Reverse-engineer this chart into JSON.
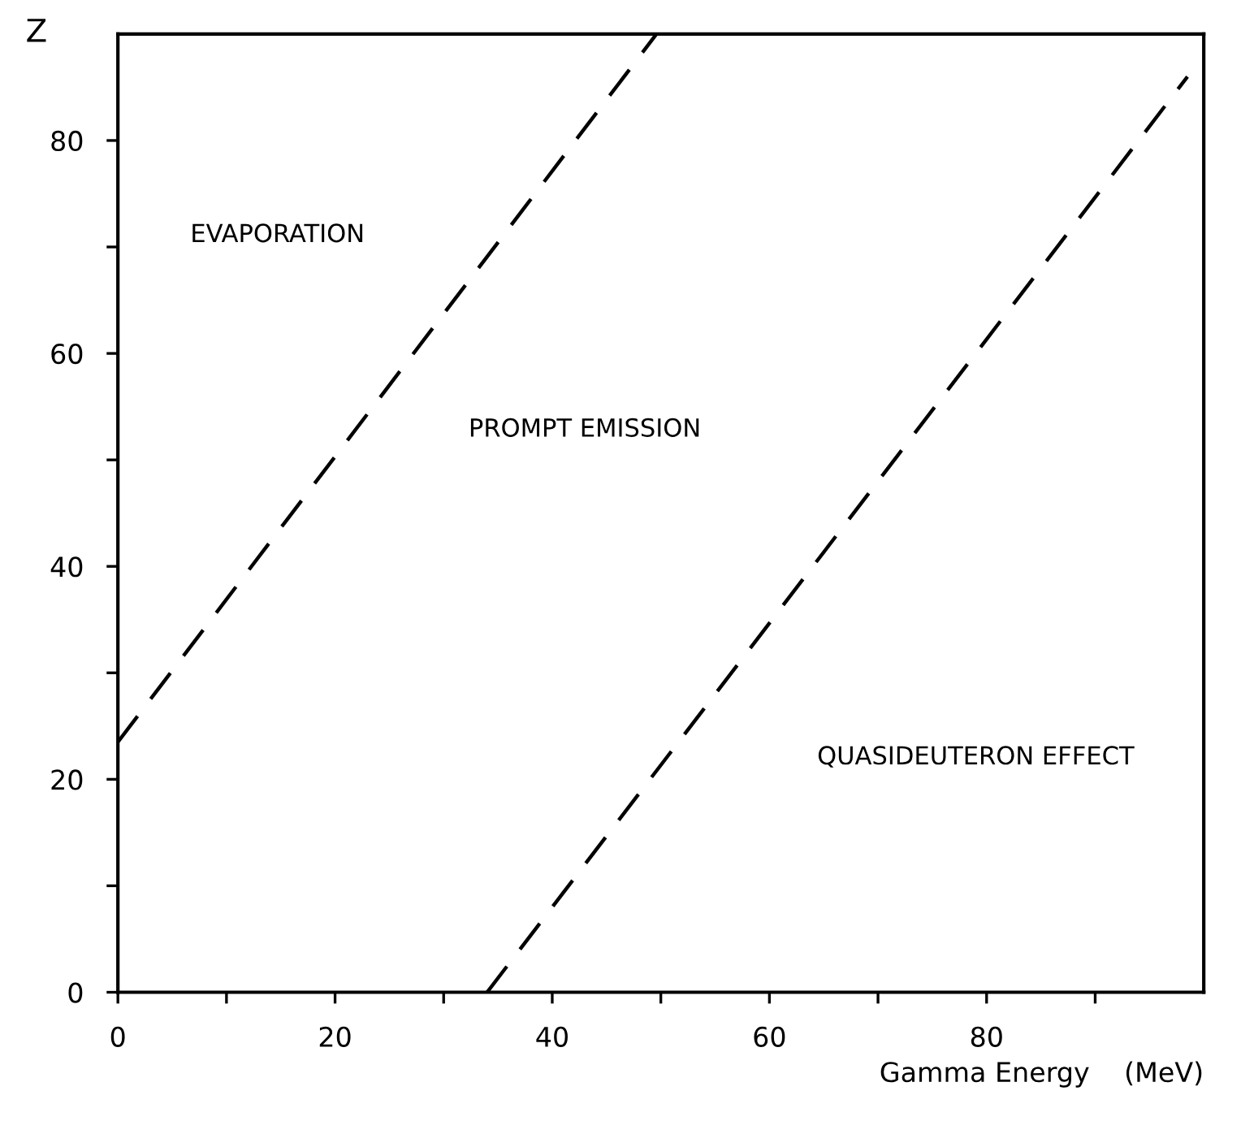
{
  "chart_data": {
    "type": "line",
    "xlabel": "Gamma Energy    (MeV)",
    "ylabel": "Z",
    "xlim": [
      0,
      100
    ],
    "ylim": [
      0,
      90
    ],
    "xticks": [
      0,
      {
        "value": 10,
        "label": null
      },
      20,
      {
        "value": 30,
        "label": null
      },
      40,
      {
        "value": 50,
        "label": null
      },
      60,
      {
        "value": 70,
        "label": null
      },
      80,
      {
        "value": 90,
        "label": null
      }
    ],
    "yticks": [
      0,
      {
        "value": 10,
        "label": null
      },
      20,
      {
        "value": 30,
        "label": null
      },
      40,
      {
        "value": 50,
        "label": null
      },
      60,
      {
        "value": 70,
        "label": null
      },
      80
    ],
    "grid": false,
    "legend": false,
    "line_style": "dashed",
    "marker": "none",
    "series": [
      {
        "color": "#000000",
        "x": [
          0,
          49.6
        ],
        "values": [
          23.5,
          90
        ]
      },
      {
        "color": "#000000",
        "x": [
          34,
          98.5
        ],
        "values": [
          0,
          86
        ]
      }
    ],
    "annotations": [
      "EVAPORATION",
      "PROMPT EMISSION",
      "QUASIDEUTERON EFFECT"
    ]
  }
}
